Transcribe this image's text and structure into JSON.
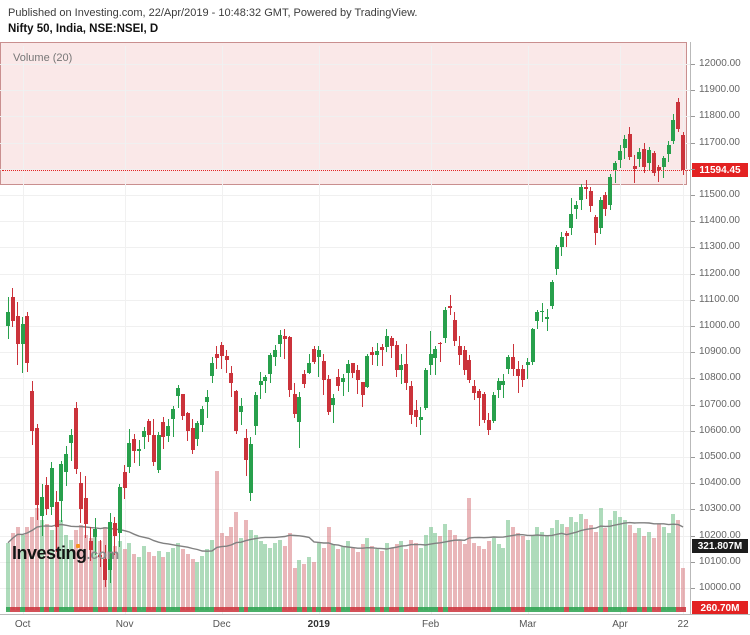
{
  "header": {
    "publish_line": "Published on Investing.com, 22/Apr/2019 - 10:48:32 GMT, Powered by TradingView.",
    "title": "Nifty 50, India, NSE:NSEI, D"
  },
  "legend": {
    "volume_label": "Volume (20)"
  },
  "logo": {
    "main": "Investing",
    "suffix": ".com"
  },
  "price_axis": {
    "ticks": [
      "12000.00",
      "11900.00",
      "11800.00",
      "11700.00",
      "11600.00",
      "11500.00",
      "11400.00",
      "11300.00",
      "11200.00",
      "11100.00",
      "11000.00",
      "10900.00",
      "10800.00",
      "10700.00",
      "10600.00",
      "10500.00",
      "10400.00",
      "10300.00",
      "10200.00",
      "10100.00",
      "10000.00"
    ],
    "hidden_by_badge": [
      "11600.00"
    ],
    "last_price_badge": "11594.45",
    "volume_ma_badge": "321.807M",
    "volume_badge": "260.70M"
  },
  "x_axis": {
    "ticks": [
      {
        "label": "Oct",
        "i": 3,
        "bold": false
      },
      {
        "label": "Nov",
        "i": 24,
        "bold": false
      },
      {
        "label": "Dec",
        "i": 44,
        "bold": false
      },
      {
        "label": "2019",
        "i": 64,
        "bold": true
      },
      {
        "label": "Feb",
        "i": 87,
        "bold": false
      },
      {
        "label": "Mar",
        "i": 107,
        "bold": false
      },
      {
        "label": "Apr",
        "i": 126,
        "bold": false
      },
      {
        "label": "22",
        "i": 139,
        "bold": false
      }
    ]
  },
  "colors": {
    "up": "#28a04c",
    "down": "#cb333b",
    "last_price_line": "#e32222",
    "badge_red": "#e32222",
    "badge_black": "#1c1c1c",
    "volume_ma_line": "#808080",
    "grid": "#f0f0f0",
    "overlay_fill": "rgba(225,110,110,0.16)",
    "overlay_border": "rgba(160,70,70,0.55)"
  },
  "chart_data": {
    "type": "candlestick+volume",
    "title": "Nifty 50, India, NSE:NSEI, D",
    "symbol": "NSE:NSEI",
    "interval": "D",
    "period_shown": "Late Sep 2018 - 22 Apr 2019",
    "last_price": 11594.45,
    "y_range": [
      9900,
      12100
    ],
    "grid": true,
    "volume_ma_period": 20,
    "overlay_rect_price_top": 10462,
    "candles_ohlc": [
      [
        10998,
        11110,
        10952,
        11053
      ],
      [
        11110,
        11145,
        10995,
        11020
      ],
      [
        11040,
        11092,
        10850,
        10930
      ],
      [
        10930,
        11036,
        10821,
        11008
      ],
      [
        11040,
        11054,
        10824,
        10858
      ],
      [
        10754,
        10791,
        10547,
        10599
      ],
      [
        10609,
        10625,
        10261,
        10316
      ],
      [
        10276,
        10398,
        10198,
        10348
      ],
      [
        10395,
        10423,
        10279,
        10301
      ],
      [
        10310,
        10482,
        10279,
        10460
      ],
      [
        10327,
        10370,
        10138,
        10234
      ],
      [
        10333,
        10486,
        10253,
        10473
      ],
      [
        10442,
        10541,
        10389,
        10512
      ],
      [
        10553,
        10606,
        10484,
        10584
      ],
      [
        10687,
        10710,
        10436,
        10453
      ],
      [
        10400,
        10442,
        10249,
        10303
      ],
      [
        10342,
        10426,
        10192,
        10245
      ],
      [
        10178,
        10232,
        10102,
        10146
      ],
      [
        10193,
        10268,
        10127,
        10224
      ],
      [
        10126,
        10183,
        10079,
        10124
      ],
      [
        10110,
        10164,
        10004,
        10030
      ],
      [
        10067,
        10286,
        10020,
        10251
      ],
      [
        10247,
        10273,
        10126,
        10198
      ],
      [
        10209,
        10396,
        10157,
        10386
      ],
      [
        10442,
        10468,
        10341,
        10380
      ],
      [
        10462,
        10606,
        10440,
        10553
      ],
      [
        10567,
        10588,
        10477,
        10524
      ],
      [
        10524,
        10566,
        10464,
        10530
      ],
      [
        10576,
        10616,
        10532,
        10598
      ],
      [
        10636,
        10645,
        10557,
        10585
      ],
      [
        10585,
        10645,
        10464,
        10482
      ],
      [
        10451,
        10596,
        10440,
        10583
      ],
      [
        10634,
        10651,
        10532,
        10576
      ],
      [
        10580,
        10646,
        10557,
        10617
      ],
      [
        10644,
        10695,
        10578,
        10682
      ],
      [
        10731,
        10774,
        10688,
        10763
      ],
      [
        10740,
        10740,
        10640,
        10656
      ],
      [
        10670,
        10671,
        10562,
        10600
      ],
      [
        10612,
        10646,
        10512,
        10526
      ],
      [
        10568,
        10637,
        10543,
        10629
      ],
      [
        10621,
        10695,
        10596,
        10685
      ],
      [
        10708,
        10757,
        10647,
        10728
      ],
      [
        10808,
        10883,
        10782,
        10858
      ],
      [
        10892,
        10922,
        10835,
        10877
      ],
      [
        10927,
        10941,
        10836,
        10884
      ],
      [
        10885,
        10908,
        10821,
        10870
      ],
      [
        10822,
        10846,
        10729,
        10782
      ],
      [
        10754,
        10757,
        10588,
        10601
      ],
      [
        10672,
        10725,
        10621,
        10694
      ],
      [
        10571,
        10608,
        10426,
        10488
      ],
      [
        10363,
        10578,
        10333,
        10549
      ],
      [
        10618,
        10747,
        10582,
        10737
      ],
      [
        10776,
        10826,
        10720,
        10792
      ],
      [
        10789,
        10815,
        10744,
        10805
      ],
      [
        10817,
        10897,
        10782,
        10888
      ],
      [
        10881,
        10927,
        10846,
        10908
      ],
      [
        10931,
        10985,
        10880,
        10967
      ],
      [
        10961,
        10989,
        10873,
        10952
      ],
      [
        10958,
        10963,
        10728,
        10754
      ],
      [
        10740,
        10782,
        10649,
        10664
      ],
      [
        10635,
        10747,
        10534,
        10730
      ],
      [
        10817,
        10834,
        10764,
        10780
      ],
      [
        10820,
        10893,
        10817,
        10860
      ],
      [
        10913,
        10923,
        10853,
        10863
      ],
      [
        10881,
        10923,
        10807,
        10910
      ],
      [
        10868,
        10895,
        10735,
        10792
      ],
      [
        10796,
        10814,
        10661,
        10672
      ],
      [
        10699,
        10741,
        10629,
        10727
      ],
      [
        10804,
        10835,
        10750,
        10772
      ],
      [
        10786,
        10818,
        10733,
        10802
      ],
      [
        10821,
        10870,
        10749,
        10855
      ],
      [
        10859,
        10859,
        10801,
        10822
      ],
      [
        10834,
        10850,
        10739,
        10795
      ],
      [
        10786,
        10786,
        10692,
        10738
      ],
      [
        10768,
        10895,
        10764,
        10887
      ],
      [
        10902,
        10920,
        10852,
        10890
      ],
      [
        10889,
        10935,
        10848,
        10905
      ],
      [
        10920,
        10930,
        10846,
        10907
      ],
      [
        10919,
        10987,
        10899,
        10962
      ],
      [
        10953,
        10963,
        10878,
        10923
      ],
      [
        10926,
        10943,
        10804,
        10832
      ],
      [
        10832,
        10893,
        10777,
        10850
      ],
      [
        10857,
        10931,
        10756,
        10781
      ],
      [
        10771,
        10791,
        10627,
        10662
      ],
      [
        10681,
        10716,
        10614,
        10653
      ],
      [
        10642,
        10690,
        10583,
        10652
      ],
      [
        10688,
        10838,
        10678,
        10831
      ],
      [
        10851,
        10983,
        10813,
        10894
      ],
      [
        10879,
        10924,
        10814,
        10912
      ],
      [
        10936,
        10941,
        10863,
        10934
      ],
      [
        10954,
        11072,
        10936,
        11063
      ],
      [
        11076,
        11118,
        11042,
        11069
      ],
      [
        11025,
        11053,
        10925,
        10944
      ],
      [
        10925,
        10962,
        10853,
        10889
      ],
      [
        10907,
        10922,
        10811,
        10831
      ],
      [
        10872,
        10888,
        10782,
        10794
      ],
      [
        10770,
        10794,
        10718,
        10746
      ],
      [
        10754,
        10760,
        10620,
        10724
      ],
      [
        10740,
        10748,
        10628,
        10641
      ],
      [
        10640,
        10668,
        10585,
        10604
      ],
      [
        10637,
        10747,
        10629,
        10735
      ],
      [
        10755,
        10800,
        10725,
        10790
      ],
      [
        10776,
        10816,
        10725,
        10792
      ],
      [
        10835,
        10890,
        10816,
        10880
      ],
      [
        10880,
        10932,
        10810,
        10835
      ],
      [
        10835,
        10865,
        10744,
        10807
      ],
      [
        10835,
        10850,
        10768,
        10793
      ],
      [
        10851,
        10877,
        10797,
        10864
      ],
      [
        10864,
        10993,
        10852,
        10988
      ],
      [
        11020,
        11063,
        10987,
        11053
      ],
      [
        11053,
        11089,
        11017,
        11058
      ],
      [
        11027,
        11066,
        10981,
        11035
      ],
      [
        11076,
        11174,
        11063,
        11168
      ],
      [
        11216,
        11309,
        11195,
        11301
      ],
      [
        11301,
        11359,
        11267,
        11341
      ],
      [
        11356,
        11364,
        11302,
        11343
      ],
      [
        11373,
        11487,
        11346,
        11427
      ],
      [
        11446,
        11476,
        11410,
        11462
      ],
      [
        11479,
        11543,
        11444,
        11532
      ],
      [
        11532,
        11556,
        11486,
        11521
      ],
      [
        11514,
        11529,
        11434,
        11457
      ],
      [
        11417,
        11425,
        11311,
        11354
      ],
      [
        11374,
        11493,
        11352,
        11483
      ],
      [
        11501,
        11513,
        11418,
        11445
      ],
      [
        11460,
        11580,
        11441,
        11570
      ],
      [
        11597,
        11630,
        11546,
        11624
      ],
      [
        11635,
        11692,
        11601,
        11669
      ],
      [
        11681,
        11729,
        11636,
        11713
      ],
      [
        11733,
        11761,
        11635,
        11644
      ],
      [
        11610,
        11653,
        11544,
        11598
      ],
      [
        11638,
        11680,
        11605,
        11666
      ],
      [
        11677,
        11697,
        11582,
        11605
      ],
      [
        11621,
        11685,
        11594,
        11672
      ],
      [
        11661,
        11670,
        11571,
        11584
      ],
      [
        11607,
        11616,
        11551,
        11597
      ],
      [
        11608,
        11650,
        11566,
        11643
      ],
      [
        11656,
        11705,
        11626,
        11690
      ],
      [
        11705,
        11810,
        11695,
        11787
      ],
      [
        11856,
        11871,
        11739,
        11752
      ],
      [
        11730,
        11740,
        11576,
        11594.45
      ]
    ],
    "volumes_millions": [
      420,
      480,
      520,
      470,
      520,
      580,
      640,
      560,
      540,
      500,
      620,
      560,
      470,
      440,
      500,
      530,
      470,
      450,
      480,
      430,
      520,
      410,
      400,
      430,
      380,
      420,
      350,
      330,
      400,
      360,
      340,
      370,
      330,
      360,
      390,
      420,
      380,
      350,
      320,
      300,
      340,
      380,
      440,
      870,
      480,
      460,
      520,
      610,
      450,
      560,
      500,
      470,
      430,
      410,
      390,
      420,
      440,
      400,
      480,
      260,
      310,
      290,
      330,
      300,
      420,
      390,
      520,
      410,
      380,
      400,
      430,
      390,
      360,
      410,
      450,
      400,
      380,
      370,
      420,
      390,
      410,
      430,
      380,
      440,
      420,
      390,
      470,
      520,
      480,
      460,
      540,
      500,
      470,
      430,
      410,
      700,
      420,
      400,
      380,
      430,
      450,
      410,
      390,
      560,
      520,
      480,
      460,
      440,
      470,
      520,
      490,
      460,
      510,
      560,
      540,
      520,
      580,
      550,
      600,
      570,
      530,
      490,
      640,
      510,
      560,
      620,
      580,
      560,
      530,
      480,
      510,
      460,
      490,
      450,
      540,
      520,
      480,
      600,
      560,
      260
    ]
  }
}
